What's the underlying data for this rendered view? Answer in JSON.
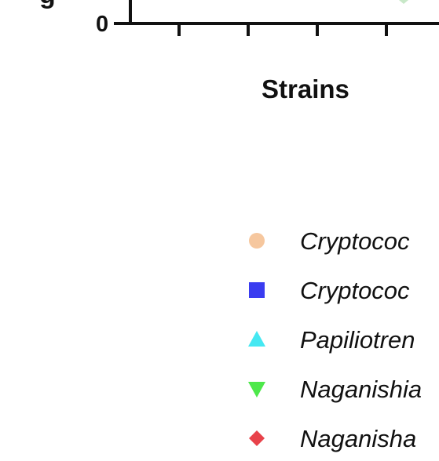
{
  "chart_data": {
    "type": "scatter",
    "title": "",
    "xlabel": "Strains",
    "ylabel_visible_fragment": "g",
    "y_ticks_visible": [
      "0"
    ],
    "x_tick_count_visible": 4,
    "legend_placement": "bottom",
    "series": [
      {
        "name": "Cryptococ",
        "marker": "circle",
        "color": "#f6c79e"
      },
      {
        "name": "Cryptococ",
        "marker": "square",
        "color": "#3a3cf0"
      },
      {
        "name": "Papiliotren",
        "marker": "triangle-up",
        "color": "#45e8f2"
      },
      {
        "name": "Naganishia",
        "marker": "triangle-down",
        "color": "#4de84a"
      },
      {
        "name": "Naganisha",
        "marker": "diamond",
        "color": "#e8424a"
      }
    ]
  }
}
